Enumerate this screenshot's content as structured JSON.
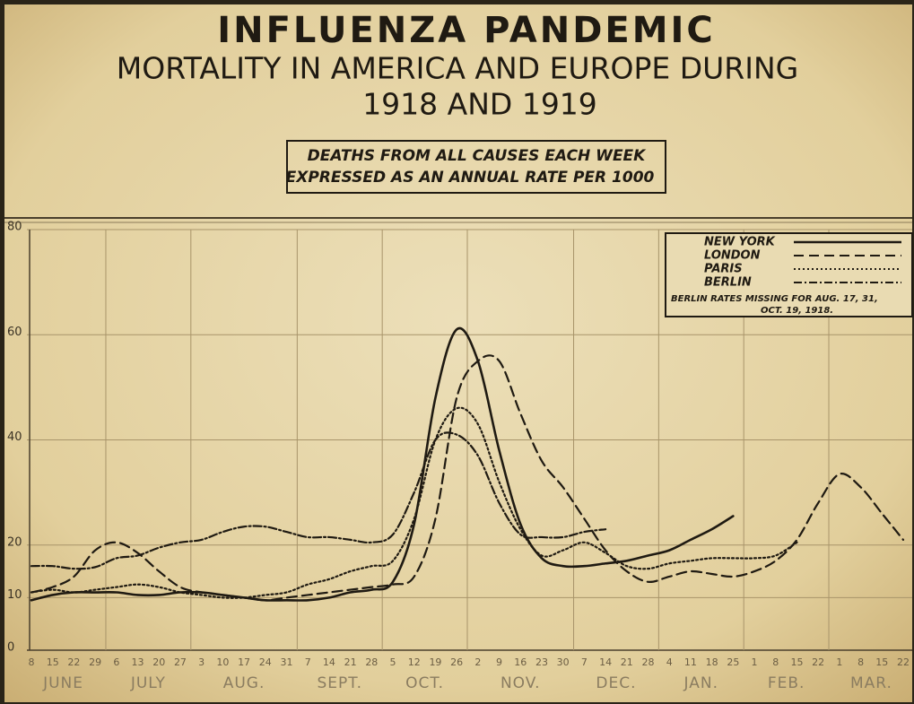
{
  "chart_data": {
    "type": "line",
    "title": "INFLUENZA PANDEMIC",
    "subtitle": [
      "MORTALITY IN AMERICA AND EUROPE DURING",
      "1918 AND 1919"
    ],
    "caption": [
      "DEATHS FROM ALL CAUSES EACH WEEK",
      "EXPRESSED AS AN ANNUAL RATE PER 1000"
    ],
    "categories": [
      "8",
      "15",
      "22",
      "29",
      "6",
      "13",
      "20",
      "27",
      "3",
      "10",
      "17",
      "24",
      "31",
      "7",
      "14",
      "21",
      "28",
      "5",
      "12",
      "19",
      "26",
      "2",
      "9",
      "16",
      "23",
      "30",
      "7",
      "14",
      "21",
      "28",
      "4",
      "11",
      "18",
      "25",
      "1",
      "8",
      "15",
      "22",
      "1",
      "8",
      "15",
      "22"
    ],
    "months": [
      "JUNE",
      "JULY",
      "AUG.",
      "SEPT.",
      "OCT.",
      "NOV.",
      "DEC.",
      "JAN.",
      "FEB.",
      "MAR."
    ],
    "ylim": [
      0,
      80
    ],
    "yticks": [
      0,
      10,
      20,
      40,
      60,
      80
    ],
    "grid": true,
    "legend": "top-right",
    "annotations": [
      "BERLIN RATES MISSING FOR AUG. 17, 31,",
      "OCT. 19, 1918."
    ],
    "series": [
      {
        "name": "NEW YORK",
        "color": "#1f1a12",
        "style": "solid",
        "values": [
          9.5,
          10.5,
          11,
          11,
          11,
          10.5,
          10.5,
          11,
          11,
          10.5,
          10,
          9.5,
          9.5,
          9.5,
          10,
          11,
          11.5,
          13,
          24,
          48,
          61,
          55,
          38,
          24,
          17.5,
          16,
          16,
          16.5,
          17,
          18,
          19,
          21,
          23,
          25.5,
          null,
          null,
          null,
          null,
          null,
          null,
          null,
          null
        ]
      },
      {
        "name": "LONDON",
        "color": "#1f1a12",
        "style": "dashed",
        "values": [
          11,
          12,
          14,
          19,
          20.5,
          18.5,
          15,
          12,
          11,
          10.5,
          10,
          9.5,
          10,
          10.5,
          11,
          11.5,
          12,
          12.5,
          14,
          25,
          48,
          55,
          55,
          45,
          36,
          31,
          25,
          19,
          15,
          13,
          14,
          15,
          14.5,
          14,
          15,
          17,
          21,
          28,
          33.5,
          31,
          26,
          21
        ]
      },
      {
        "name": "PARIS",
        "color": "#1f1a12",
        "style": "dotted",
        "values": [
          11,
          11.5,
          11,
          11.5,
          12,
          12.5,
          12,
          11,
          10.5,
          10,
          10,
          10.5,
          11,
          12.5,
          13.5,
          15,
          16,
          17,
          25,
          40,
          46,
          43,
          32,
          23,
          18,
          19,
          20.5,
          18.5,
          16,
          15.5,
          16.5,
          17,
          17.5,
          17.5,
          17.5,
          18,
          20.5,
          null,
          null,
          null,
          null,
          null
        ]
      },
      {
        "name": "BERLIN",
        "color": "#1f1a12",
        "style": "dash-dot",
        "values": [
          16,
          16,
          15.5,
          15.8,
          17.5,
          18,
          19.5,
          20.5,
          21,
          22.5,
          23.5,
          23.5,
          22.5,
          21.5,
          21.5,
          21,
          20.5,
          22,
          30,
          40,
          41,
          37,
          28,
          22,
          21.5,
          21.5,
          22.5,
          23,
          null,
          null,
          null,
          null,
          null,
          null,
          null,
          null,
          null,
          null,
          null,
          null,
          null,
          null
        ]
      }
    ]
  }
}
